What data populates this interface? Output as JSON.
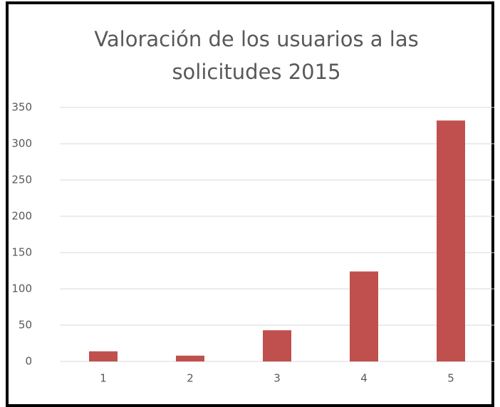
{
  "chart_data": {
    "type": "bar",
    "title": "Valoración de los usuarios a las solicitudes 2015",
    "categories": [
      "1",
      "2",
      "3",
      "4",
      "5"
    ],
    "values": [
      14,
      8,
      43,
      124,
      332
    ],
    "color": "#c0504d",
    "ylim": [
      0,
      350
    ],
    "yticks": [
      0,
      50,
      100,
      150,
      200,
      250,
      300,
      350
    ],
    "grid": true
  }
}
